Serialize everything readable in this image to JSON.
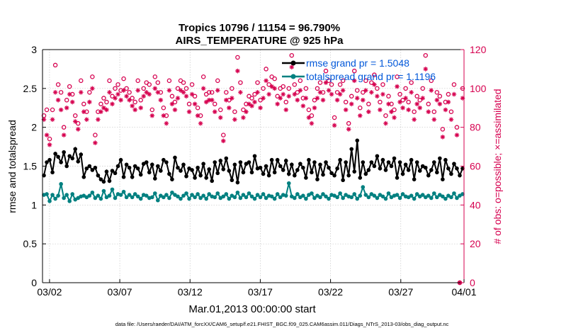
{
  "chart_data": {
    "type": "line",
    "title": "Tropics 10796 / 11154 = 96.790%",
    "subtitle": "AIRS_TEMPERATURE @ 925 hPa",
    "xlabel": "Mar.01,2013 00:00:00 start",
    "ylabel": "rmse and totalspread",
    "y2label": "# of obs: o=possible; ×=assimilated",
    "footer": "data file: /Users/raeder/DAI/ATM_forcXX/CAM6_setup/f.e21.FHIST_BGC.f09_025.CAM6assim.011/Diags_NTrS_2013-03/obs_diag_output.nc",
    "xlim": [
      0,
      30
    ],
    "ylim": [
      0,
      3
    ],
    "y2lim": [
      0,
      120
    ],
    "x_ticks": [
      0.5,
      5.5,
      10.5,
      15.5,
      20.5,
      25.5,
      30.5
    ],
    "x_tick_labels": [
      "03/02",
      "03/07",
      "03/12",
      "03/17",
      "03/22",
      "03/27",
      "04/01"
    ],
    "y_ticks": [
      0,
      0.5,
      1,
      1.5,
      2,
      2.5,
      3
    ],
    "y_tick_labels": [
      "0",
      "0.5",
      "1",
      "1.5",
      "2",
      "2.5",
      "3"
    ],
    "y2_ticks": [
      0,
      20,
      40,
      60,
      80,
      100,
      120
    ],
    "y2_tick_labels": [
      "0",
      "20",
      "40",
      "60",
      "80",
      "100",
      "120"
    ],
    "grid": true,
    "legend_position": "top-right",
    "colors": {
      "rmse": "#000000",
      "spread": "#008080",
      "obs": "#D6004F",
      "legend_text": "#0057D9"
    },
    "series": [
      {
        "name": "rmse grand pr = 1.5048",
        "axis": "left",
        "marker": "filled-circle",
        "color": "#000000",
        "values": [
          1.38,
          1.55,
          1.58,
          1.42,
          1.66,
          1.62,
          1.55,
          1.68,
          1.5,
          1.63,
          1.6,
          1.72,
          1.56,
          1.65,
          1.36,
          1.47,
          1.5,
          1.45,
          1.48,
          1.38,
          1.33,
          1.3,
          1.43,
          1.31,
          1.44,
          1.41,
          1.5,
          1.58,
          1.36,
          1.52,
          1.48,
          1.36,
          1.5,
          1.47,
          1.39,
          1.53,
          1.55,
          1.42,
          1.52,
          1.34,
          1.5,
          1.44,
          1.58,
          1.55,
          1.4,
          1.33,
          1.61,
          1.48,
          1.44,
          1.52,
          1.37,
          1.47,
          1.45,
          1.35,
          1.48,
          1.38,
          1.53,
          1.35,
          1.46,
          1.31,
          1.55,
          1.41,
          1.57,
          1.46,
          1.6,
          1.44,
          1.32,
          1.52,
          1.29,
          1.55,
          1.42,
          1.53,
          1.55,
          1.42,
          1.63,
          1.47,
          1.48,
          1.4,
          1.5,
          1.38,
          1.58,
          1.42,
          1.58,
          1.5,
          1.45,
          1.57,
          1.4,
          1.52,
          1.38,
          1.45,
          1.53,
          1.48,
          1.35,
          1.58,
          1.42,
          1.55,
          1.33,
          1.52,
          1.39,
          1.55,
          1.48,
          1.41,
          1.38,
          1.47,
          1.58,
          1.32,
          1.55,
          1.38,
          1.72,
          1.43,
          1.83,
          1.35,
          1.55,
          1.4,
          1.45,
          1.55,
          1.5,
          1.63,
          1.47,
          1.58,
          1.45,
          1.55,
          1.5,
          1.6,
          1.35,
          1.55,
          1.4,
          1.52,
          1.45,
          1.58,
          1.33,
          1.55,
          1.44,
          1.5,
          1.48,
          1.38,
          1.45,
          1.55,
          1.42,
          1.6,
          1.33,
          1.58,
          1.47,
          1.4,
          1.53,
          1.47,
          1.38,
          1.47
        ]
      },
      {
        "name": "totalspread grand pr = 1.1196",
        "axis": "left",
        "marker": "filled-circle",
        "color": "#008080",
        "values": [
          1.13,
          1.14,
          1.05,
          1.13,
          1.08,
          1.12,
          1.27,
          1.09,
          1.13,
          1.05,
          1.14,
          1.07,
          1.09,
          1.11,
          1.12,
          1.1,
          1.12,
          1.16,
          1.09,
          1.12,
          1.08,
          1.18,
          1.1,
          1.12,
          1.2,
          1.09,
          1.14,
          1.13,
          1.17,
          1.1,
          1.13,
          1.1,
          1.14,
          1.11,
          1.08,
          1.13,
          1.12,
          1.09,
          1.1,
          1.15,
          1.06,
          1.12,
          1.1,
          1.13,
          1.09,
          1.16,
          1.13,
          1.11,
          1.08,
          1.12,
          1.15,
          1.08,
          1.13,
          1.1,
          1.14,
          1.09,
          1.12,
          1.08,
          1.14,
          1.11,
          1.1,
          1.15,
          1.09,
          1.11,
          1.14,
          1.08,
          1.12,
          1.1,
          1.16,
          1.09,
          1.13,
          1.1,
          1.15,
          1.11,
          1.08,
          1.13,
          1.1,
          1.14,
          1.09,
          1.12,
          1.11,
          1.08,
          1.14,
          1.1,
          1.13,
          1.12,
          1.28,
          1.11,
          1.09,
          1.14,
          1.1,
          1.12,
          1.08,
          1.13,
          1.15,
          1.09,
          1.12,
          1.1,
          1.14,
          1.11,
          1.08,
          1.13,
          1.12,
          1.1,
          1.15,
          1.09,
          1.13,
          1.11,
          1.1,
          1.14,
          1.08,
          1.12,
          1.23,
          1.13,
          1.1,
          1.14,
          1.12,
          1.09,
          1.13,
          1.11,
          1.08,
          1.15,
          1.1,
          1.12,
          1.13,
          1.09,
          1.14,
          1.11,
          1.1,
          1.12,
          1.08,
          1.14,
          1.11,
          1.13,
          1.1,
          1.12,
          1.09,
          1.15,
          1.1,
          1.13,
          1.11,
          1.08,
          1.12,
          1.1,
          1.15,
          1.09,
          1.12,
          1.14
        ]
      },
      {
        "name": "obs possible",
        "axis": "right",
        "marker": "open-circle",
        "color": "#D6004F",
        "values": [
          86,
          89,
          74,
          89,
          112,
          102,
          98,
          80,
          94,
          101,
          97,
          86,
          82,
          104,
          92,
          88,
          98,
          106,
          76,
          88,
          92,
          95,
          93,
          104,
          96,
          100,
          102,
          99,
          105,
          100,
          98,
          95,
          93,
          104,
          94,
          100,
          103,
          102,
          89,
          106,
          103,
          98,
          90,
          86,
          104,
          96,
          93,
          100,
          104,
          103,
          100,
          92,
          102,
          96,
          90,
          86,
          106,
          97,
          98,
          98,
          92,
          104,
          89,
          76,
          98,
          94,
          100,
          88,
          116,
          103,
          89,
          92,
          96,
          95,
          97,
          103,
          94,
          100,
          110,
          102,
          106,
          105,
          96,
          100,
          101,
          93,
          100,
          117,
          102,
          98,
          104,
          95,
          100,
          89,
          86,
          94,
          100,
          103,
          98,
          109,
          104,
          102,
          85,
          98,
          102,
          104,
          93,
          82,
          96,
          109,
          99,
          90,
          98,
          104,
          92,
          103,
          107,
          100,
          93,
          102,
          86,
          96,
          92,
          89,
          106,
          97,
          94,
          100,
          93,
          103,
          88,
          96,
          94,
          100,
          117,
          92,
          104,
          88,
          98,
          96,
          79,
          93,
          97,
          88,
          102,
          80,
          0,
          100
        ]
      },
      {
        "name": "obs assimilated",
        "axis": "right",
        "marker": "asterisk",
        "color": "#D6004F",
        "values": [
          84,
          76,
          71,
          84,
          98,
          94,
          89,
          76,
          90,
          97,
          93,
          83,
          79,
          98,
          88,
          84,
          93,
          100,
          72,
          84,
          88,
          90,
          89,
          98,
          92,
          95,
          97,
          94,
          99,
          96,
          94,
          91,
          89,
          99,
          90,
          96,
          98,
          97,
          86,
          100,
          98,
          94,
          86,
          82,
          99,
          92,
          89,
          95,
          99,
          98,
          96,
          88,
          97,
          92,
          86,
          82,
          100,
          93,
          94,
          94,
          88,
          99,
          85,
          73,
          94,
          90,
          95,
          84,
          109,
          98,
          85,
          88,
          92,
          91,
          93,
          98,
          90,
          95,
          104,
          97,
          101,
          100,
          92,
          95,
          97,
          89,
          96,
          111,
          97,
          94,
          99,
          91,
          95,
          85,
          82,
          90,
          95,
          98,
          94,
          103,
          99,
          97,
          81,
          94,
          97,
          99,
          89,
          79,
          92,
          104,
          95,
          86,
          94,
          99,
          88,
          98,
          102,
          96,
          89,
          97,
          82,
          92,
          88,
          85,
          101,
          93,
          90,
          95,
          89,
          98,
          84,
          92,
          90,
          95,
          110,
          88,
          99,
          84,
          94,
          92,
          75,
          89,
          93,
          84,
          97,
          76,
          0,
          95
        ]
      }
    ]
  }
}
